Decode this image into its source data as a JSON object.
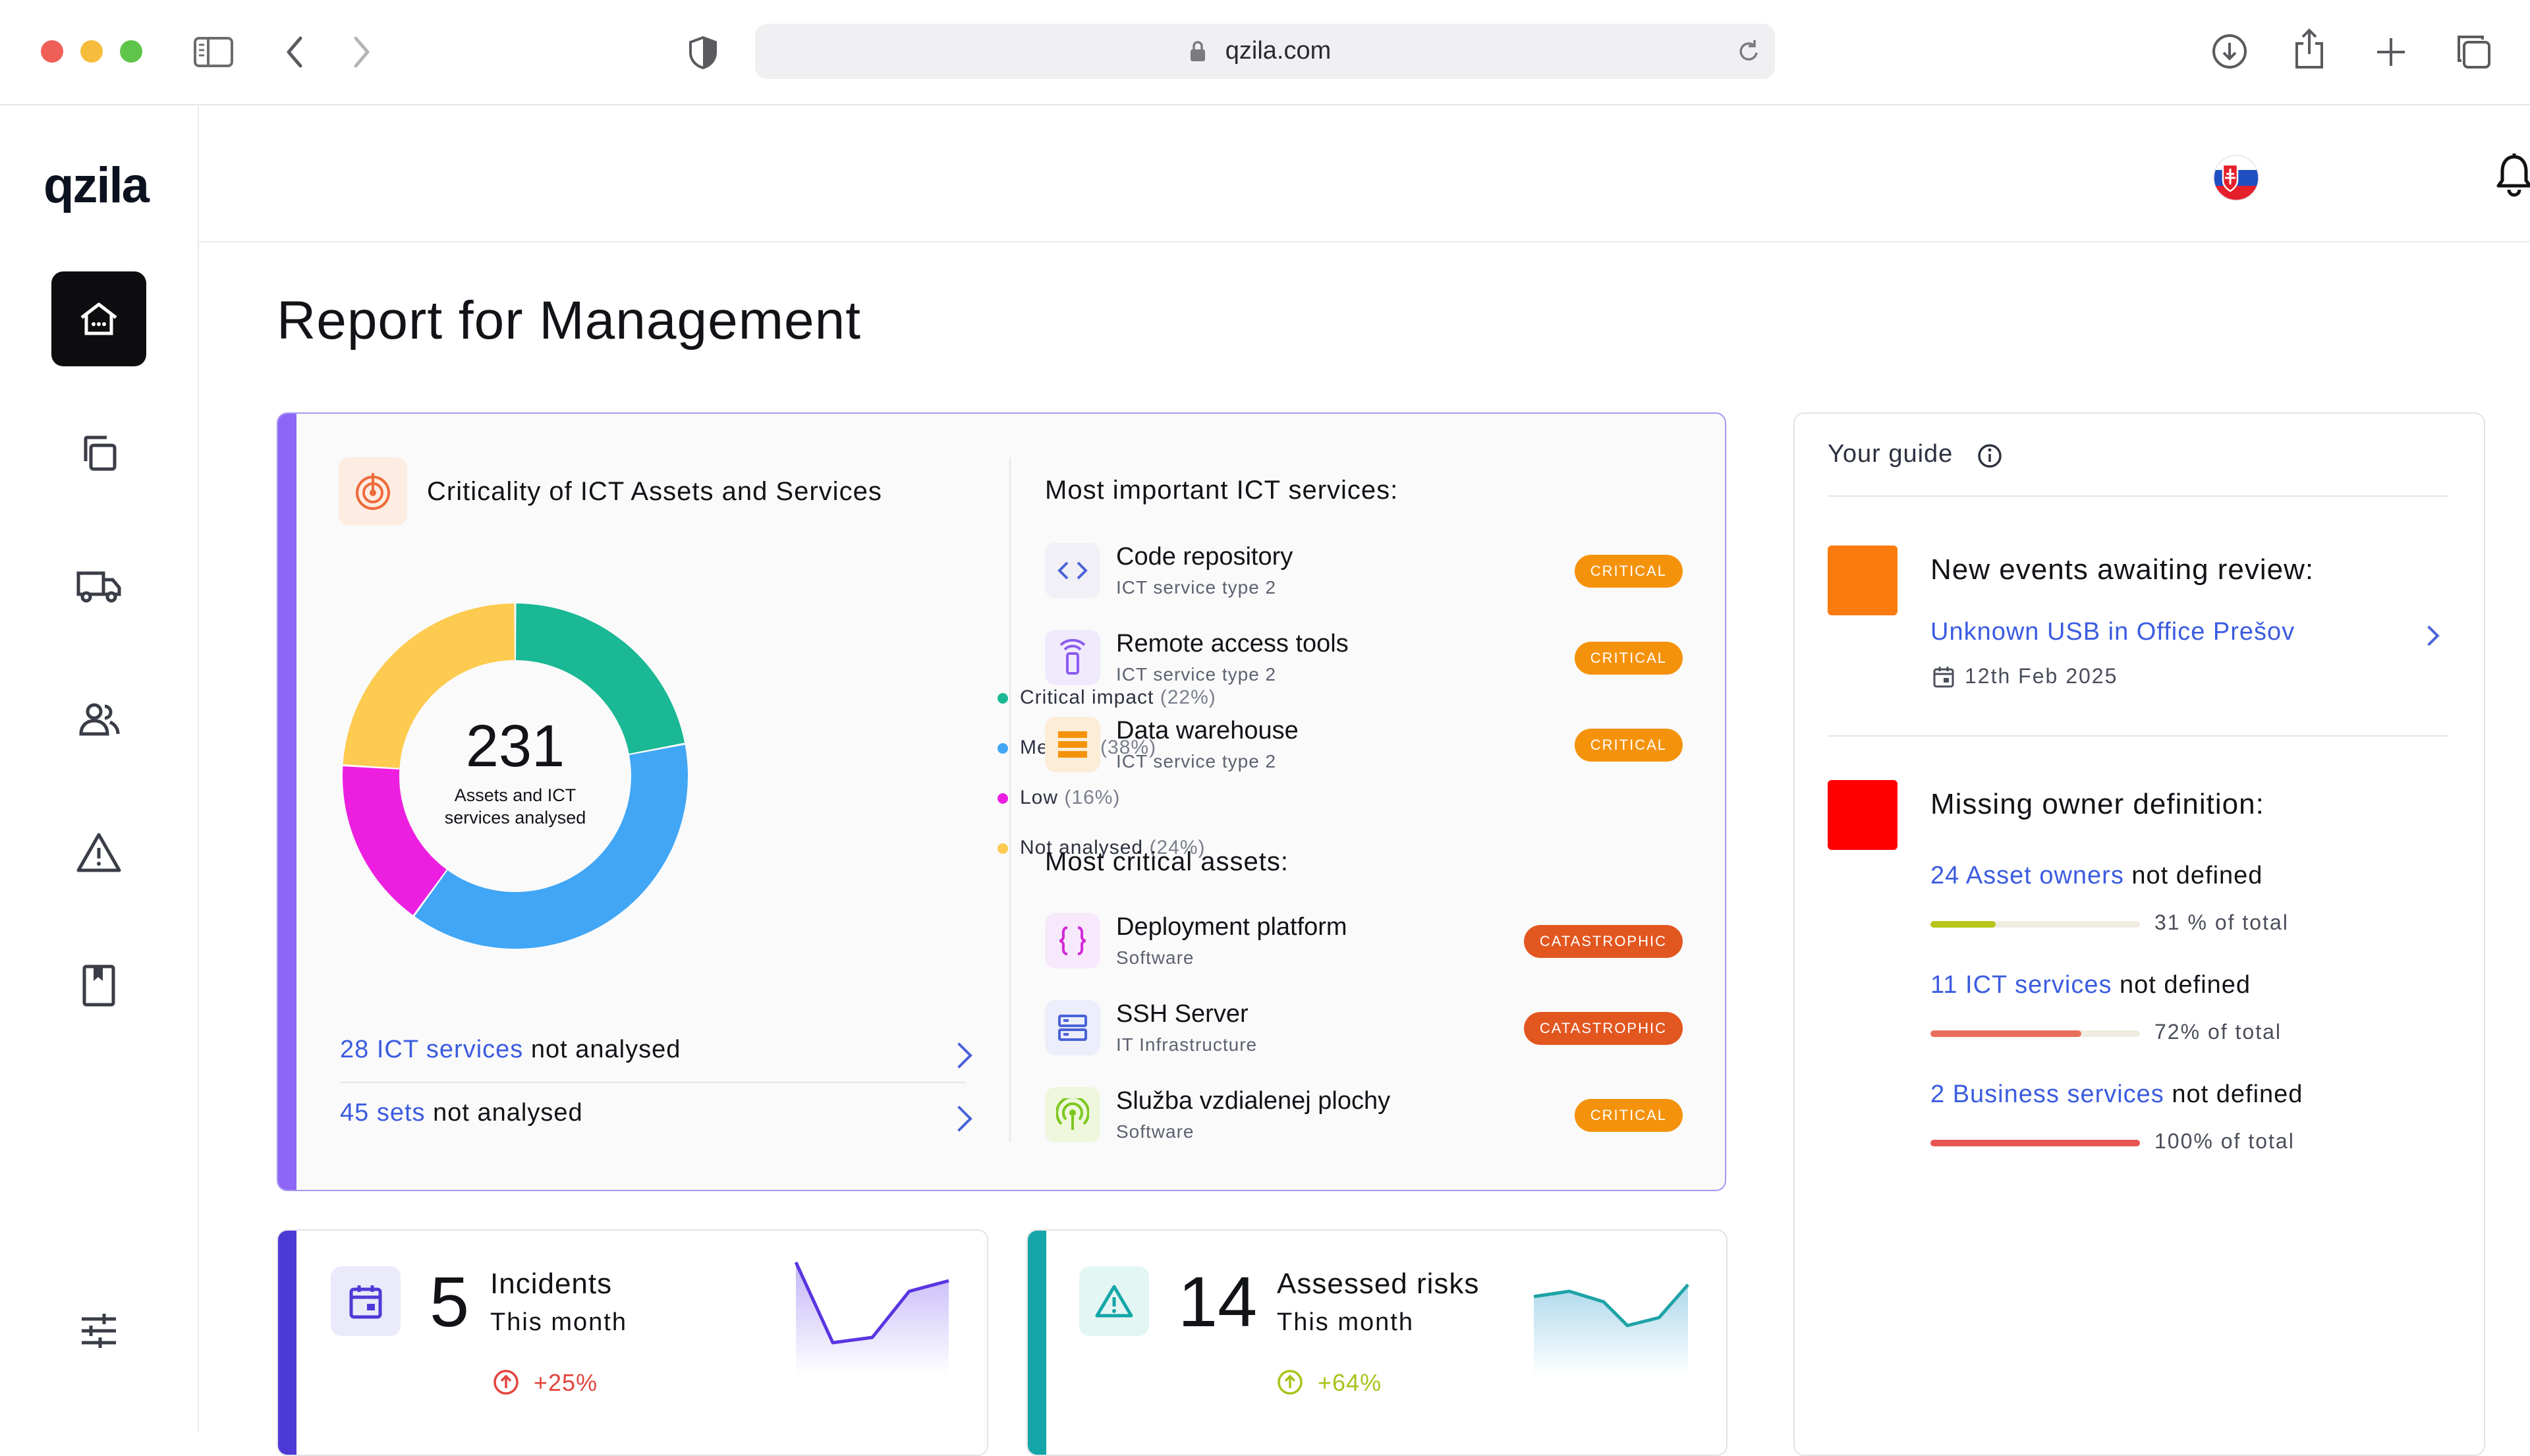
{
  "browser": {
    "url": "qzila.com"
  },
  "app": {
    "logo": "qzila"
  },
  "sidebar": {
    "items": [
      {
        "icon": "home-icon",
        "active": true
      },
      {
        "icon": "copy-icon"
      },
      {
        "icon": "truck-icon"
      },
      {
        "icon": "users-icon"
      },
      {
        "icon": "warning-icon"
      },
      {
        "icon": "book-icon"
      },
      {
        "icon": "settings-sliders-icon"
      }
    ]
  },
  "page": {
    "title": "Report for Management"
  },
  "criticality": {
    "title": "Criticality of ICT Assets and Services",
    "total": "231",
    "total_caption_line1": "Assets and ICT",
    "total_caption_line2": "services analysed",
    "legend": [
      {
        "label": "Critical impact",
        "pct": "(22%)",
        "color": "#1ab894"
      },
      {
        "label": "Medium",
        "pct": "(38%)",
        "color": "#40a6f5"
      },
      {
        "label": "Low",
        "pct": "(16%)",
        "color": "#ec1fe0"
      },
      {
        "label": "Not analysed",
        "pct": "(24%)",
        "color": "#fdcb4f"
      }
    ],
    "footer": [
      {
        "count": "28 ICT services",
        "rest": " not analysed"
      },
      {
        "count": "45 sets",
        "rest": " not analysed"
      }
    ]
  },
  "chart_data": {
    "type": "pie",
    "categories": [
      "Critical impact",
      "Medium",
      "Low",
      "Not analysed"
    ],
    "values": [
      22,
      38,
      16,
      24
    ],
    "center_label": "231"
  },
  "services": {
    "heading": "Most important ICT services:",
    "items": [
      {
        "title": "Code repository",
        "sub": "ICT service type 2",
        "badge": "CRITICAL",
        "icon": "code-icon"
      },
      {
        "title": "Remote access tools",
        "sub": "ICT service type 2",
        "badge": "CRITICAL",
        "icon": "remote-icon"
      },
      {
        "title": "Data warehouse",
        "sub": "ICT service type 2",
        "badge": "CRITICAL",
        "icon": "database-icon"
      }
    ]
  },
  "assets": {
    "heading": "Most critical assets:",
    "items": [
      {
        "title": "Deployment platform",
        "sub": "Software",
        "badge": "CATASTROPHIC",
        "icon": "braces-icon"
      },
      {
        "title": "SSH Server",
        "sub": "IT Infrastructure",
        "badge": "CATASTROPHIC",
        "icon": "server-icon"
      },
      {
        "title": "Služba vzdialenej plochy",
        "sub": "Software",
        "badge": "CRITICAL",
        "icon": "broadcast-icon"
      }
    ]
  },
  "incidents": {
    "count": "5",
    "label": "Incidents",
    "period": "This month",
    "change": "+25%"
  },
  "risks": {
    "count": "14",
    "label": "Assessed risks",
    "period": "This month",
    "change": "+64%"
  },
  "guide": {
    "title": "Your guide",
    "events": {
      "heading": "New events awaiting review:",
      "link": "Unknown USB in Office Prešov",
      "date": "12th Feb 2025"
    },
    "owners": {
      "heading": "Missing owner definition:",
      "rows": [
        {
          "count": "24 Asset owners",
          "rest": " not defined",
          "caption": "31 % of total",
          "fraction": 0.31,
          "color": "#b8c519"
        },
        {
          "count": "11 ICT services",
          "rest": " not defined",
          "caption": "72% of total",
          "fraction": 0.72,
          "color": "#e8705b"
        },
        {
          "count": "2 Business services",
          "rest": " not defined",
          "caption": "100% of total",
          "fraction": 1.0,
          "color": "#e65454"
        }
      ]
    }
  }
}
